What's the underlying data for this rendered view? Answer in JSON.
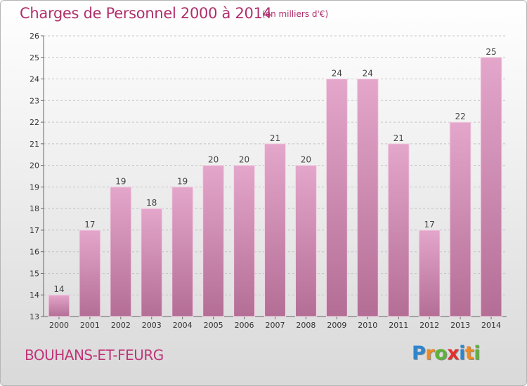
{
  "header": {
    "title": "Charges de Personnel 2000 à 2014",
    "subtitle": "(en milliers d'€)"
  },
  "footer": {
    "commune": "BOUHANS-ET-FEURG",
    "logo": [
      "P",
      "r",
      "o",
      "x",
      "i",
      "t",
      "i"
    ]
  },
  "colors": {
    "title": "#b0306c",
    "bar_top": "#e4a6cb",
    "bar_bottom": "#b46e96",
    "logo": [
      "#2d86cf",
      "#f08a1e",
      "#5cb33a",
      "#e32f2f",
      "#2d86cf",
      "#f08a1e",
      "#5cb33a"
    ]
  },
  "chart_data": {
    "type": "bar",
    "title": "Charges de Personnel 2000 à 2014",
    "subtitle": "(en milliers d'€)",
    "xlabel": "",
    "ylabel": "",
    "categories": [
      "2000",
      "2001",
      "2002",
      "2003",
      "2004",
      "2005",
      "2006",
      "2007",
      "2008",
      "2009",
      "2010",
      "2011",
      "2012",
      "2013",
      "2014"
    ],
    "values": [
      14,
      17,
      19,
      18,
      19,
      20,
      20,
      21,
      20,
      24,
      24,
      21,
      17,
      22,
      25
    ],
    "ylim": [
      13,
      26
    ],
    "yticks": [
      13,
      14,
      15,
      16,
      17,
      18,
      19,
      20,
      21,
      22,
      23,
      24,
      25,
      26
    ],
    "grid": "y-dashed",
    "data_labels": true
  }
}
